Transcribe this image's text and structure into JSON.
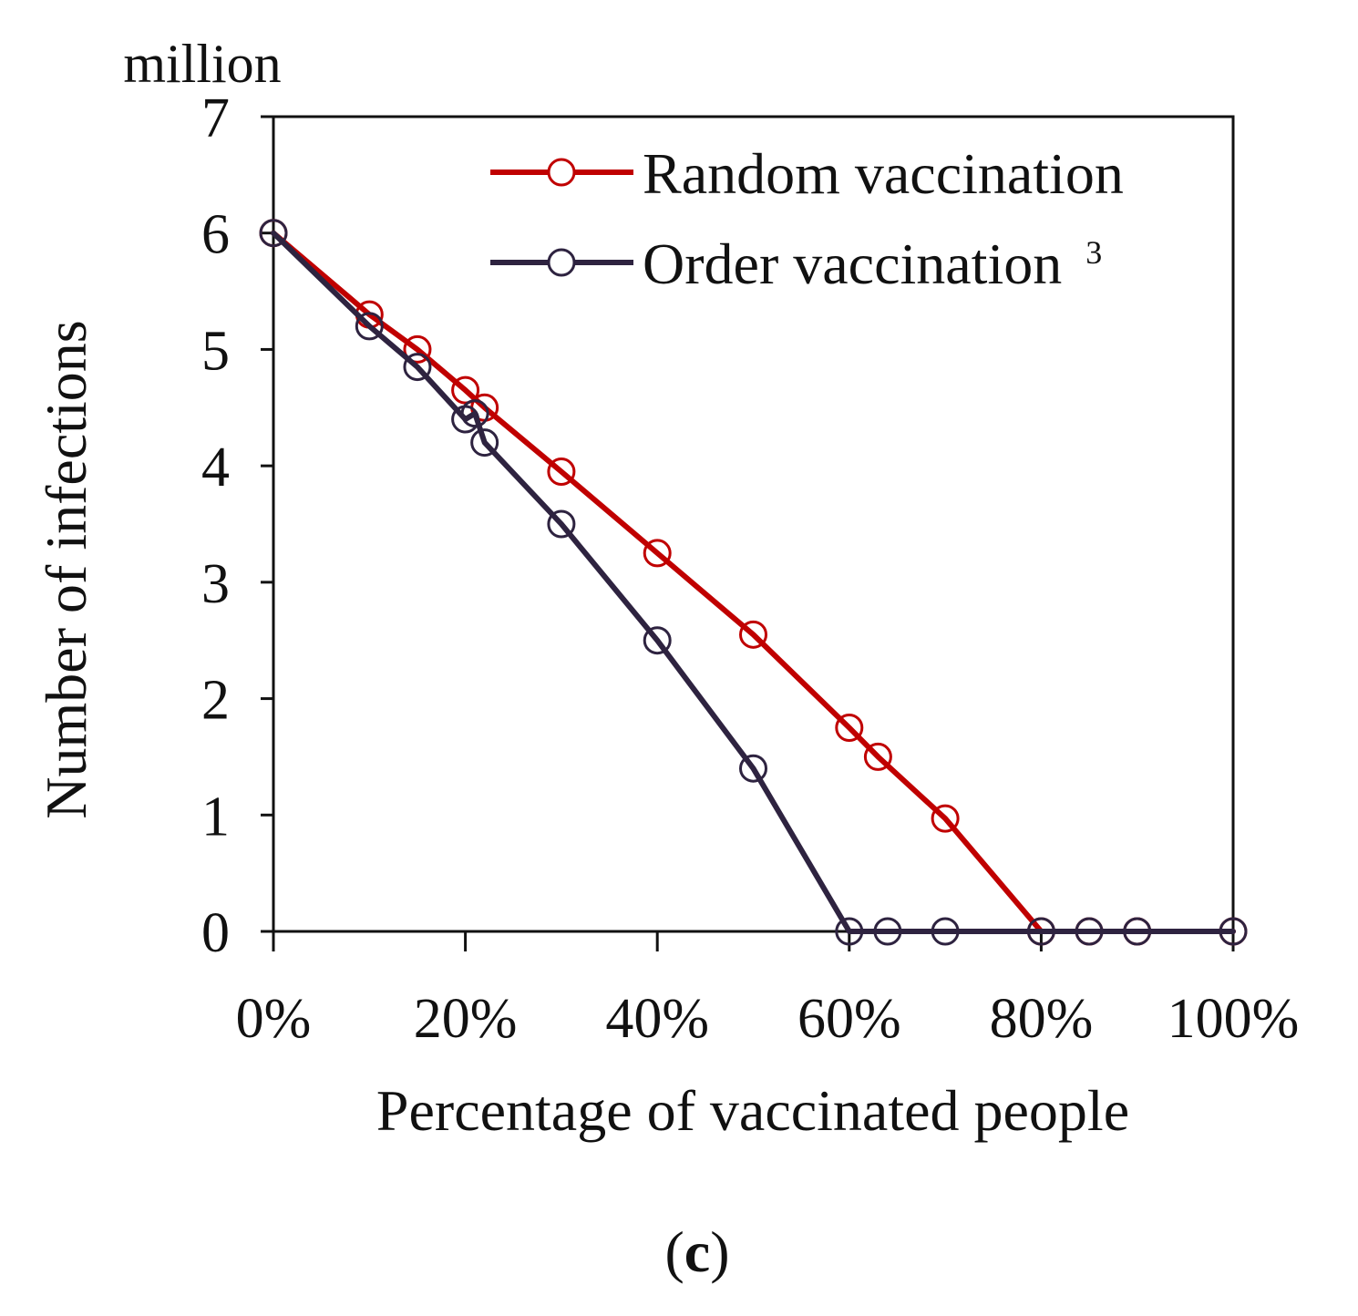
{
  "chart_data": {
    "type": "line",
    "unit_label": "million",
    "xlabel": "Percentage of vaccinated people",
    "ylabel": "Number of infections",
    "xlim": [
      0,
      100
    ],
    "ylim": [
      0,
      7
    ],
    "xticks": [
      0,
      20,
      40,
      60,
      80,
      100
    ],
    "xtick_labels": [
      "0%",
      "20%",
      "40%",
      "60%",
      "80%",
      "100%"
    ],
    "yticks": [
      0,
      1,
      2,
      3,
      4,
      5,
      6,
      7
    ],
    "ytick_labels": [
      "0",
      "1",
      "2",
      "3",
      "4",
      "5",
      "6",
      "7"
    ],
    "grid": false,
    "legend_position": "top-right",
    "series": [
      {
        "name": "Random vaccination",
        "color": "#c00000",
        "marker": "open-circle",
        "x": [
          0,
          10,
          15,
          20,
          22,
          30,
          40,
          50,
          60,
          63,
          70,
          80,
          85,
          90,
          100
        ],
        "y": [
          6.0,
          5.3,
          5.0,
          4.65,
          4.5,
          3.95,
          3.25,
          2.55,
          1.75,
          1.5,
          0.97,
          0.0,
          0.0,
          0.0,
          0.0
        ]
      },
      {
        "name": "Order vaccination",
        "superscript": "3",
        "color": "#2e2340",
        "marker": "open-circle",
        "x": [
          0,
          10,
          15,
          20,
          21,
          22,
          30,
          40,
          50,
          60,
          64,
          70,
          80,
          85,
          90,
          100
        ],
        "y": [
          6.0,
          5.2,
          4.85,
          4.4,
          4.45,
          4.2,
          3.5,
          2.5,
          1.4,
          0.0,
          0.0,
          0.0,
          0.0,
          0.0,
          0.0,
          0.0
        ]
      }
    ]
  },
  "caption": {
    "open": "(",
    "letter": "c",
    "close": ")"
  }
}
